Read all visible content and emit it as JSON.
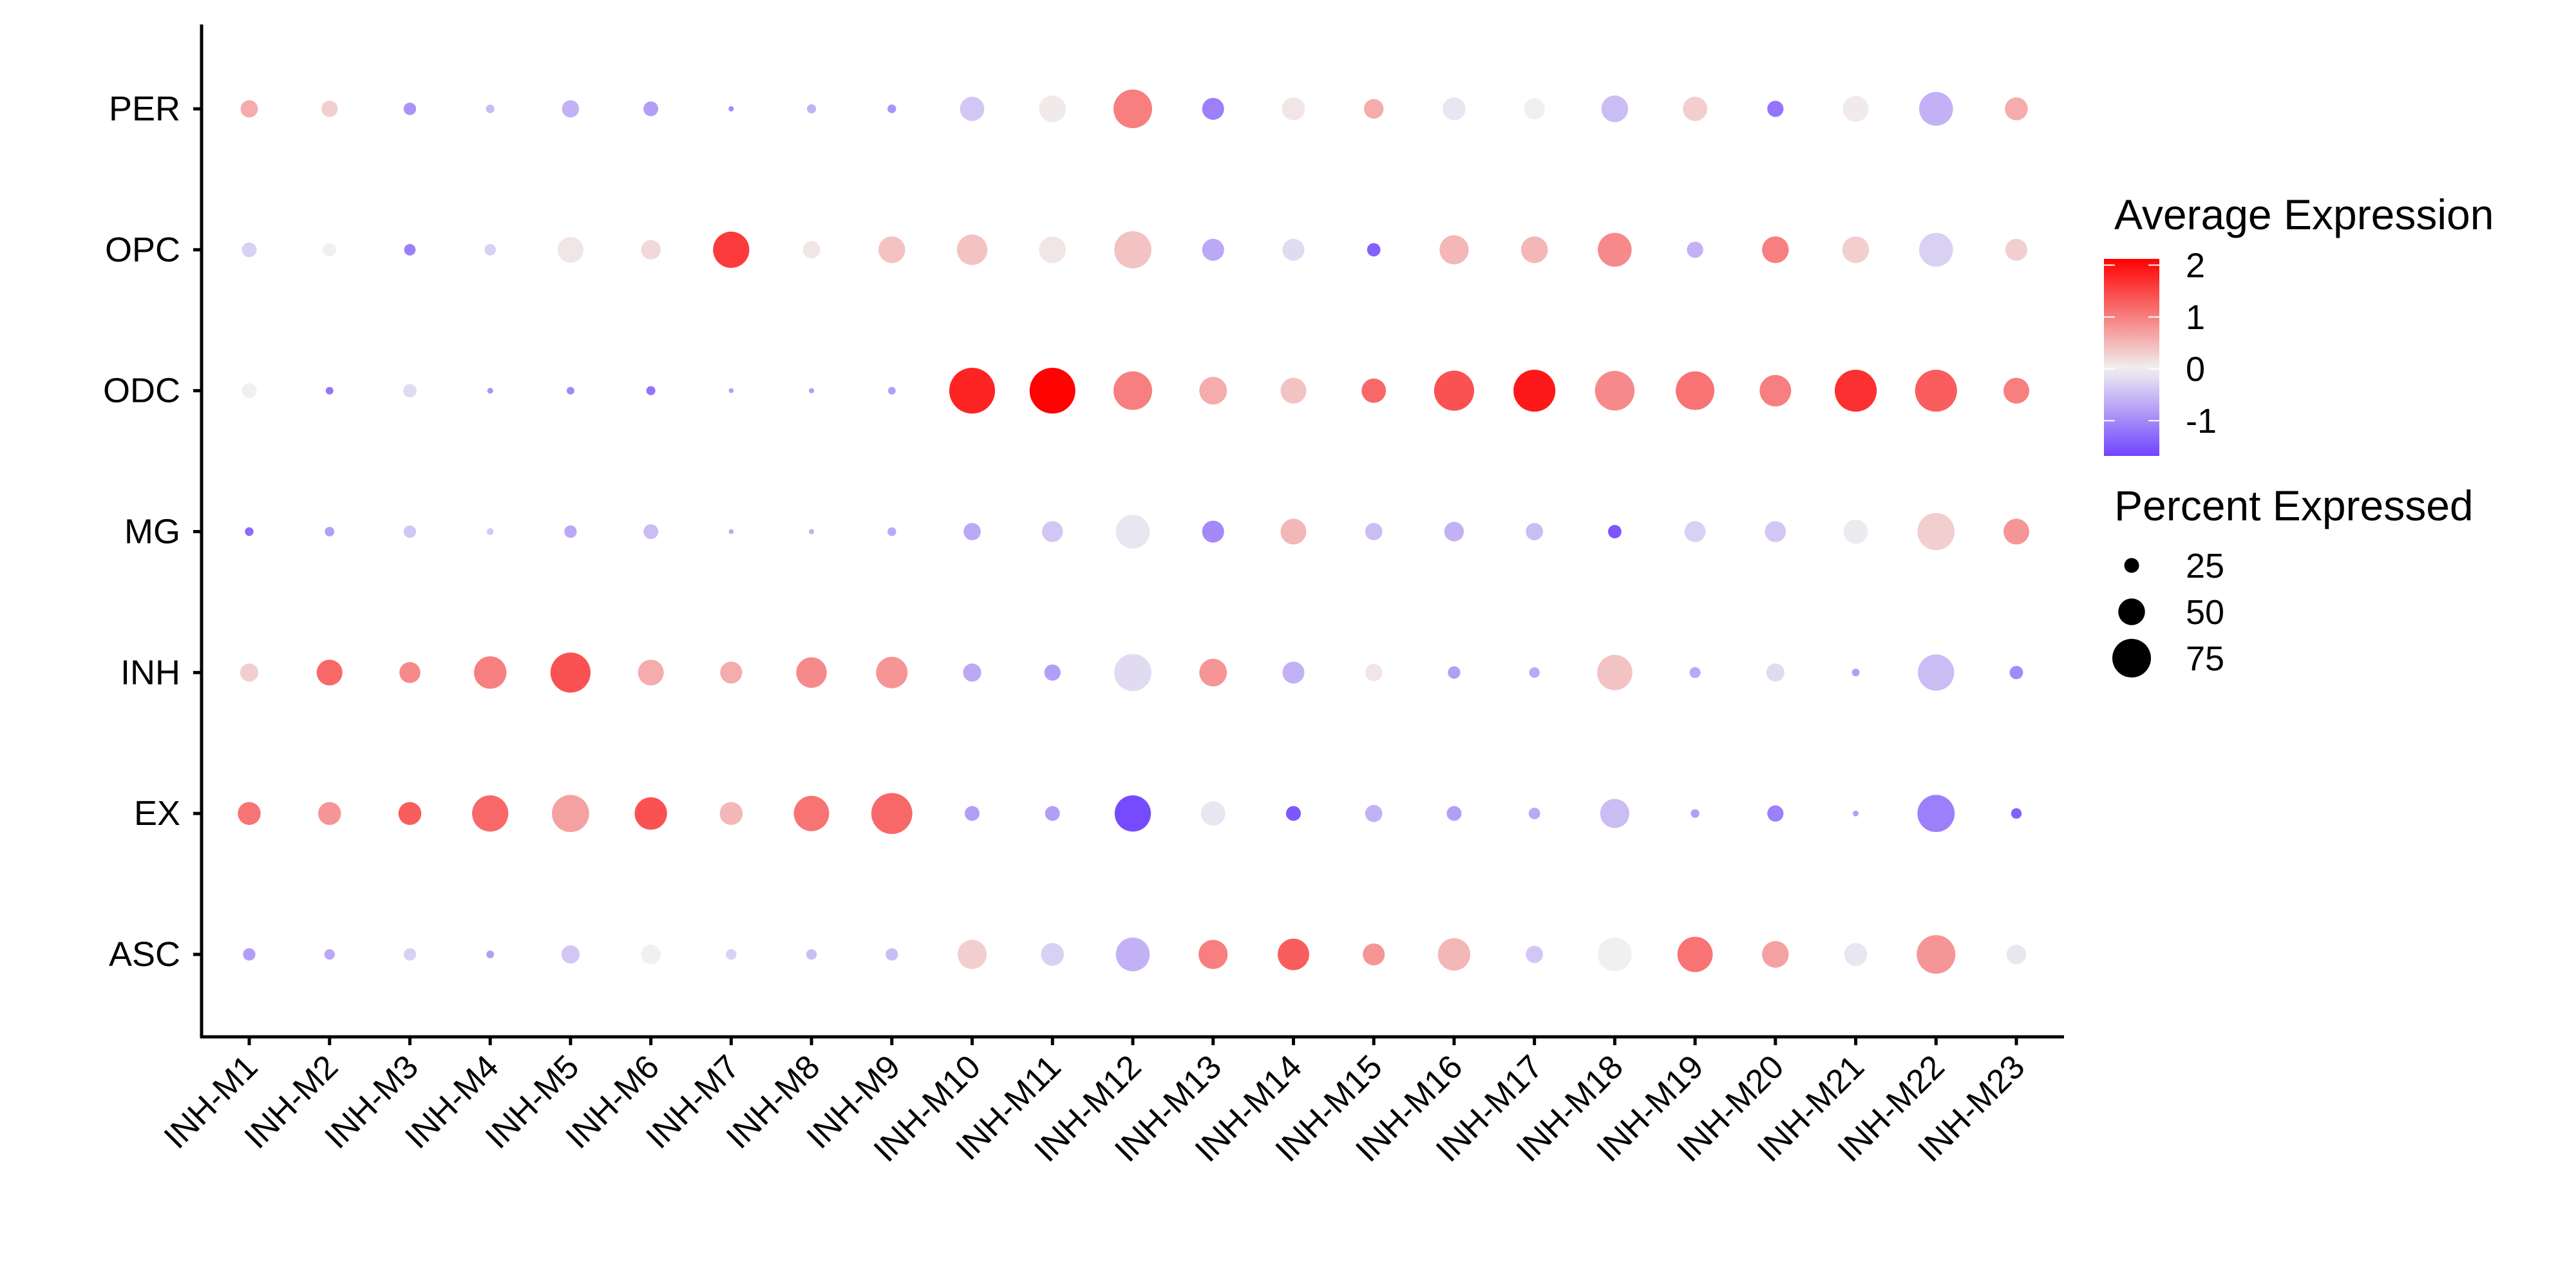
{
  "chart_data": {
    "type": "scatter",
    "subtype": "dot-plot",
    "title": "",
    "xlabel": "",
    "ylabel": "",
    "x_categories": [
      "INH-M1",
      "INH-M2",
      "INH-M3",
      "INH-M4",
      "INH-M5",
      "INH-M6",
      "INH-M7",
      "INH-M8",
      "INH-M9",
      "INH-M10",
      "INH-M11",
      "INH-M12",
      "INH-M13",
      "INH-M14",
      "INH-M15",
      "INH-M16",
      "INH-M17",
      "INH-M18",
      "INH-M19",
      "INH-M20",
      "INH-M21",
      "INH-M22",
      "INH-M23"
    ],
    "y_categories": [
      "PER",
      "OPC",
      "ODC",
      "MG",
      "INH",
      "EX",
      "ASC"
    ],
    "avg_expression": {
      "PER": [
        0.6,
        0.3,
        -0.9,
        -0.5,
        -0.6,
        -0.8,
        -1.0,
        -0.6,
        -0.9,
        -0.4,
        0.05,
        1.0,
        -1.1,
        0.1,
        0.6,
        -0.1,
        0.0,
        -0.5,
        0.3,
        -1.2,
        0.05,
        -0.6,
        0.6
      ],
      "OPC": [
        -0.3,
        0.0,
        -1.1,
        -0.3,
        0.1,
        0.2,
        1.6,
        0.1,
        0.4,
        0.4,
        0.1,
        0.4,
        -0.7,
        -0.2,
        -1.4,
        0.5,
        0.5,
        0.9,
        -0.6,
        1.0,
        0.3,
        -0.3,
        0.3
      ],
      "ODC": [
        0.0,
        -1.2,
        -0.2,
        -0.9,
        -1.0,
        -1.2,
        -0.8,
        -0.8,
        -0.8,
        1.8,
        2.1,
        1.0,
        0.6,
        0.4,
        1.2,
        1.4,
        1.9,
        0.9,
        1.1,
        1.0,
        1.7,
        1.3,
        1.0
      ],
      "MG": [
        -1.3,
        -0.8,
        -0.4,
        -0.4,
        -0.7,
        -0.5,
        -0.7,
        -0.6,
        -0.7,
        -0.7,
        -0.4,
        -0.1,
        -1.0,
        0.5,
        -0.5,
        -0.6,
        -0.5,
        -1.5,
        -0.3,
        -0.4,
        -0.05,
        0.3,
        0.8
      ],
      "INH": [
        0.3,
        1.2,
        0.9,
        1.0,
        1.4,
        0.6,
        0.6,
        0.9,
        0.8,
        -0.7,
        -0.8,
        -0.2,
        0.8,
        -0.6,
        0.1,
        -0.8,
        -0.7,
        0.4,
        -0.7,
        -0.2,
        -0.8,
        -0.5,
        -1.0
      ],
      "EX": [
        1.1,
        0.8,
        1.3,
        1.2,
        0.7,
        1.4,
        0.5,
        1.1,
        1.2,
        -0.8,
        -0.8,
        -1.6,
        -0.1,
        -1.5,
        -0.6,
        -0.8,
        -0.7,
        -0.5,
        -0.8,
        -1.1,
        -0.8,
        -1.1,
        -1.4
      ],
      "ASC": [
        -0.8,
        -0.7,
        -0.3,
        -0.8,
        -0.4,
        0.0,
        -0.3,
        -0.5,
        -0.5,
        0.3,
        -0.3,
        -0.6,
        1.0,
        1.3,
        0.8,
        0.5,
        -0.4,
        0.0,
        1.1,
        0.7,
        -0.1,
        0.8,
        -0.1
      ]
    },
    "percent_expressed": {
      "PER": [
        30,
        28,
        20,
        12,
        30,
        25,
        5,
        13,
        12,
        45,
        50,
        75,
        40,
        42,
        35,
        42,
        38,
        50,
        45,
        28,
        48,
        65,
        42
      ],
      "OPC": [
        25,
        22,
        18,
        18,
        48,
        35,
        70,
        30,
        50,
        58,
        50,
        72,
        40,
        40,
        22,
        55,
        50,
        65,
        28,
        50,
        50,
        65,
        40
      ],
      "ODC": [
        25,
        10,
        22,
        6,
        10,
        13,
        4,
        5,
        10,
        90,
        90,
        75,
        52,
        48,
        45,
        78,
        82,
        77,
        75,
        60,
        82,
        82,
        48
      ],
      "MG": [
        12,
        14,
        20,
        8,
        20,
        25,
        4,
        5,
        12,
        30,
        38,
        65,
        40,
        48,
        30,
        35,
        30,
        22,
        38,
        38,
        45,
        72,
        48
      ],
      "INH": [
        32,
        48,
        38,
        62,
        78,
        48,
        40,
        58,
        60,
        32,
        28,
        72,
        52,
        40,
        30,
        20,
        16,
        68,
        17,
        32,
        10,
        70,
        22
      ],
      "EX": [
        42,
        42,
        42,
        70,
        72,
        62,
        42,
        68,
        80,
        25,
        25,
        70,
        45,
        25,
        30,
        25,
        18,
        55,
        12,
        28,
        6,
        72,
        16
      ],
      "ASC": [
        20,
        16,
        20,
        10,
        32,
        35,
        16,
        16,
        20,
        55,
        42,
        65,
        55,
        60,
        40,
        62,
        30,
        65,
        68,
        50,
        42,
        75,
        35
      ]
    },
    "color_legend": {
      "title": "Average Expression",
      "ticks": [
        "2",
        "1",
        "0",
        "-1"
      ],
      "tick_values": [
        2,
        1,
        0,
        -1
      ],
      "range": [
        -1.68,
        2.12
      ],
      "low_color": "#7043FF",
      "mid_color": "#F0F0F0",
      "high_color": "#FF0000",
      "midpoint": 0
    },
    "size_legend": {
      "title": "Percent Expressed",
      "labels": [
        "25",
        "50",
        "75"
      ],
      "values": [
        25,
        50,
        75
      ],
      "color": "#000000"
    },
    "legend_position": "right",
    "grid": false
  }
}
